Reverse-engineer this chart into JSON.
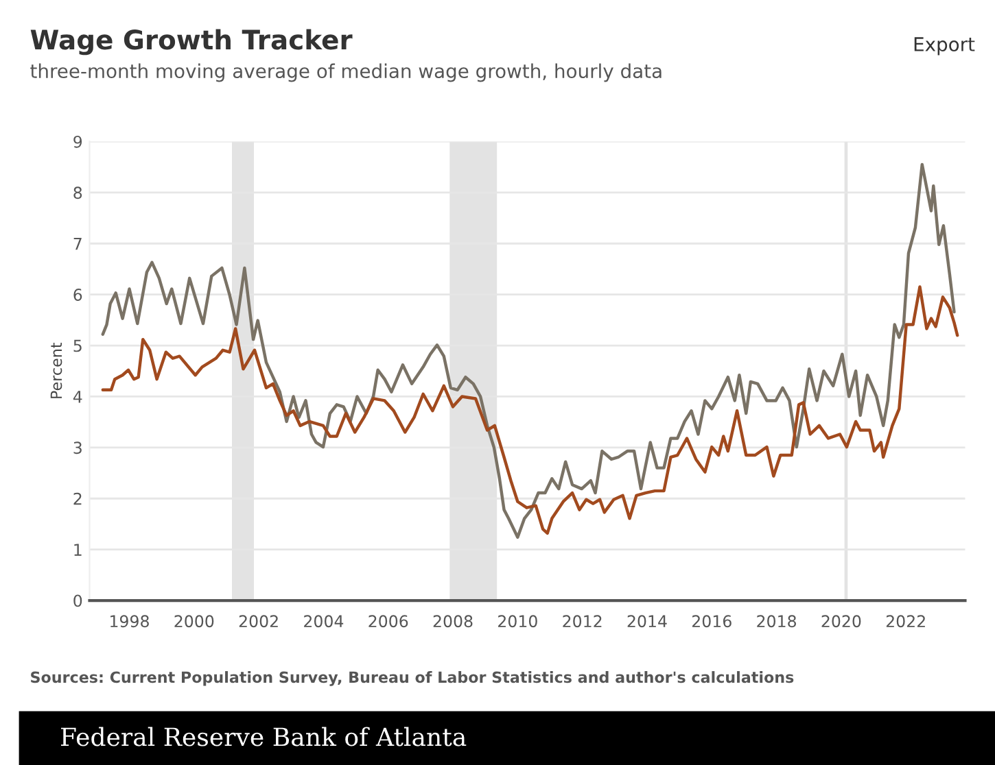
{
  "chart_data": {
    "type": "line",
    "title": "Wage Growth Tracker",
    "subtitle": "three-month moving average of median wage growth, hourly data",
    "ylabel": "Percent",
    "xlim": [
      1996.77,
      2023.83
    ],
    "xticks": [
      1998,
      2000,
      2002,
      2004,
      2006,
      2008,
      2010,
      2012,
      2014,
      2016,
      2018,
      2020,
      2022
    ],
    "ylim": [
      0,
      9
    ],
    "yticks": [
      0,
      1,
      2,
      3,
      4,
      5,
      6,
      7,
      8,
      9
    ],
    "grid": "y",
    "line_style": "solid",
    "bands": [
      {
        "axis": "x",
        "from": 2001.17,
        "to": 2001.85,
        "color": "#e3e3e3"
      },
      {
        "axis": "x",
        "from": 2007.9,
        "to": 2009.36,
        "color": "#e3e3e3"
      },
      {
        "axis": "x",
        "from": 2020.1,
        "to": 2020.2,
        "color": "#e3e3e3"
      }
    ],
    "series": [
      {
        "color": "#7a7265",
        "x": [
          1997.18,
          1997.3,
          1997.41,
          1997.58,
          1997.79,
          1998.0,
          1998.25,
          1998.54,
          1998.7,
          1998.92,
          1999.15,
          1999.31,
          1999.59,
          1999.86,
          2000.28,
          2000.54,
          2000.86,
          2001.1,
          2001.31,
          2001.56,
          2001.83,
          2001.97,
          2002.23,
          2002.44,
          2002.65,
          2002.86,
          2003.07,
          2003.24,
          2003.45,
          2003.63,
          2003.77,
          2003.99,
          2004.2,
          2004.41,
          2004.62,
          2004.83,
          2005.04,
          2005.32,
          2005.54,
          2005.68,
          2005.89,
          2006.1,
          2006.45,
          2006.73,
          2007.08,
          2007.3,
          2007.51,
          2007.72,
          2007.93,
          2008.14,
          2008.39,
          2008.63,
          2008.85,
          2009.06,
          2009.27,
          2009.44,
          2009.58,
          2009.72,
          2010.0,
          2010.21,
          2010.42,
          2010.64,
          2010.85,
          2011.06,
          2011.27,
          2011.48,
          2011.69,
          2011.98,
          2012.26,
          2012.4,
          2012.61,
          2012.9,
          2013.11,
          2013.39,
          2013.6,
          2013.81,
          2014.1,
          2014.31,
          2014.52,
          2014.73,
          2014.94,
          2015.16,
          2015.37,
          2015.58,
          2015.79,
          2016.0,
          2016.21,
          2016.5,
          2016.71,
          2016.85,
          2017.06,
          2017.2,
          2017.42,
          2017.7,
          2017.98,
          2018.19,
          2018.4,
          2018.62,
          2018.83,
          2019.01,
          2019.25,
          2019.46,
          2019.75,
          2020.03,
          2020.24,
          2020.45,
          2020.59,
          2020.81,
          2021.09,
          2021.3,
          2021.44,
          2021.65,
          2021.79,
          2021.93,
          2022.08,
          2022.29,
          2022.5,
          2022.78,
          2022.85,
          2023.02,
          2023.16,
          2023.35,
          2023.49
        ],
        "values": [
          5.22,
          5.41,
          5.82,
          6.03,
          5.53,
          6.11,
          5.43,
          6.44,
          6.63,
          6.32,
          5.82,
          6.11,
          5.43,
          6.32,
          5.43,
          6.36,
          6.52,
          5.99,
          5.41,
          6.52,
          5.12,
          5.49,
          4.67,
          4.38,
          4.09,
          3.51,
          4.0,
          3.59,
          3.92,
          3.26,
          3.1,
          3.01,
          3.67,
          3.84,
          3.8,
          3.51,
          4.0,
          3.67,
          4.0,
          4.52,
          4.34,
          4.09,
          4.62,
          4.25,
          4.58,
          4.83,
          5.01,
          4.79,
          4.17,
          4.13,
          4.38,
          4.25,
          4.0,
          3.43,
          3.0,
          2.39,
          1.78,
          1.61,
          1.24,
          1.61,
          1.78,
          2.11,
          2.11,
          2.39,
          2.19,
          2.72,
          2.27,
          2.19,
          2.35,
          2.11,
          2.93,
          2.77,
          2.81,
          2.93,
          2.93,
          2.19,
          3.1,
          2.6,
          2.6,
          3.18,
          3.18,
          3.51,
          3.72,
          3.26,
          3.92,
          3.76,
          4.0,
          4.38,
          3.92,
          4.42,
          3.67,
          4.29,
          4.25,
          3.92,
          3.92,
          4.17,
          3.92,
          3.01,
          3.76,
          4.54,
          3.92,
          4.5,
          4.21,
          4.83,
          4.0,
          4.5,
          3.63,
          4.42,
          4.0,
          3.43,
          3.92,
          5.41,
          5.16,
          5.41,
          6.81,
          7.31,
          8.55,
          7.64,
          8.13,
          6.98,
          7.35,
          6.4,
          5.66
        ]
      },
      {
        "color": "#a24a1e",
        "x": [
          1997.18,
          1997.44,
          1997.55,
          1997.79,
          1997.97,
          1998.14,
          1998.28,
          1998.42,
          1998.63,
          1998.85,
          1999.13,
          1999.34,
          1999.55,
          2000.04,
          2000.25,
          2000.68,
          2000.89,
          2001.1,
          2001.28,
          2001.52,
          2001.87,
          2002.23,
          2002.44,
          2002.65,
          2002.86,
          2003.07,
          2003.28,
          2003.56,
          2003.99,
          2004.2,
          2004.41,
          2004.69,
          2004.97,
          2005.25,
          2005.54,
          2005.89,
          2006.17,
          2006.52,
          2006.8,
          2007.08,
          2007.37,
          2007.72,
          2008.0,
          2008.28,
          2008.7,
          2009.06,
          2009.29,
          2009.58,
          2009.79,
          2010.0,
          2010.28,
          2010.56,
          2010.78,
          2010.92,
          2011.06,
          2011.41,
          2011.69,
          2011.91,
          2012.12,
          2012.33,
          2012.54,
          2012.68,
          2012.97,
          2013.25,
          2013.46,
          2013.67,
          2013.95,
          2014.24,
          2014.52,
          2014.73,
          2014.94,
          2015.23,
          2015.51,
          2015.79,
          2016.0,
          2016.21,
          2016.36,
          2016.5,
          2016.78,
          2017.06,
          2017.34,
          2017.7,
          2017.91,
          2018.12,
          2018.47,
          2018.69,
          2018.83,
          2019.04,
          2019.32,
          2019.6,
          2019.96,
          2020.17,
          2020.45,
          2020.59,
          2020.88,
          2021.02,
          2021.23,
          2021.3,
          2021.58,
          2021.79,
          2022.01,
          2022.22,
          2022.43,
          2022.64,
          2022.78,
          2022.92,
          2023.14,
          2023.35,
          2023.49,
          2023.59
        ],
        "values": [
          4.13,
          4.13,
          4.34,
          4.42,
          4.52,
          4.34,
          4.38,
          5.12,
          4.91,
          4.34,
          4.87,
          4.75,
          4.79,
          4.42,
          4.58,
          4.75,
          4.91,
          4.87,
          5.33,
          4.54,
          4.91,
          4.17,
          4.25,
          3.92,
          3.63,
          3.72,
          3.43,
          3.51,
          3.43,
          3.22,
          3.22,
          3.67,
          3.3,
          3.59,
          3.96,
          3.92,
          3.72,
          3.3,
          3.59,
          4.05,
          3.72,
          4.21,
          3.8,
          4.0,
          3.96,
          3.34,
          3.43,
          2.81,
          2.35,
          1.94,
          1.82,
          1.86,
          1.4,
          1.32,
          1.61,
          1.94,
          2.11,
          1.78,
          1.98,
          1.9,
          1.98,
          1.73,
          1.98,
          2.06,
          1.61,
          2.06,
          2.11,
          2.15,
          2.15,
          2.81,
          2.85,
          3.18,
          2.77,
          2.52,
          3.01,
          2.85,
          3.22,
          2.93,
          3.72,
          2.85,
          2.85,
          3.01,
          2.44,
          2.85,
          2.85,
          3.84,
          3.88,
          3.26,
          3.43,
          3.18,
          3.26,
          3.01,
          3.51,
          3.34,
          3.34,
          2.93,
          3.1,
          2.81,
          3.43,
          3.76,
          5.41,
          5.41,
          6.15,
          5.33,
          5.53,
          5.37,
          5.95,
          5.74,
          5.45,
          5.2
        ]
      }
    ],
    "annotations": [
      "Export",
      "Sources: Current Population Survey, Bureau of Labor Statistics and author's calculations",
      "Federal Reserve Bank of Atlanta"
    ]
  }
}
